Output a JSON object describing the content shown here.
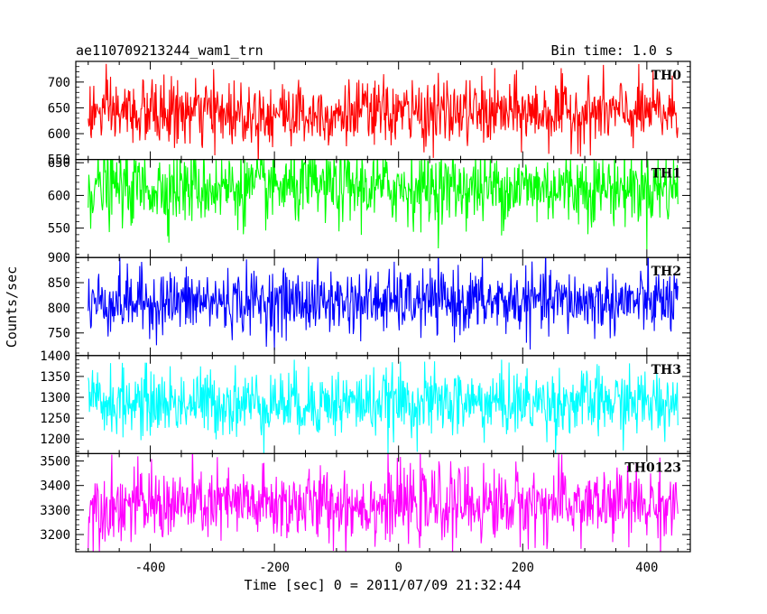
{
  "header": {
    "title": "ae110709213244_wam1_trn",
    "bin_time": "Bin time: 1.0 s"
  },
  "chart_data": {
    "type": "line",
    "xlabel": "Time [sec] 0 = 2011/07/09 21:32:44",
    "ylabel": "Counts/sec",
    "xlim": [
      -520,
      470
    ],
    "x_range": [
      -500,
      450
    ],
    "x_ticks": [
      -400,
      -200,
      0,
      200,
      400
    ],
    "bin_time_s": 1.0,
    "panels": [
      {
        "name": "TH0",
        "color": "#ff0000",
        "ylim": [
          550,
          740
        ],
        "yticks": [
          550,
          600,
          650,
          700
        ],
        "mean": 640,
        "spread": 32
      },
      {
        "name": "TH1",
        "color": "#00ff00",
        "ylim": [
          505,
          655
        ],
        "yticks": [
          550,
          600,
          650
        ],
        "mean": 612,
        "spread": 28
      },
      {
        "name": "TH2",
        "color": "#0000ff",
        "ylim": [
          705,
          900
        ],
        "yticks": [
          750,
          800,
          850,
          900
        ],
        "mean": 812,
        "spread": 32
      },
      {
        "name": "TH3",
        "color": "#00ffff",
        "ylim": [
          1165,
          1400
        ],
        "yticks": [
          1200,
          1250,
          1300,
          1350,
          1400
        ],
        "mean": 1287,
        "spread": 40
      },
      {
        "name": "TH0123",
        "color": "#ff00ff",
        "ylim": [
          3130,
          3530
        ],
        "yticks": [
          3200,
          3300,
          3400,
          3500
        ],
        "mean": 3322,
        "spread": 75
      }
    ]
  }
}
